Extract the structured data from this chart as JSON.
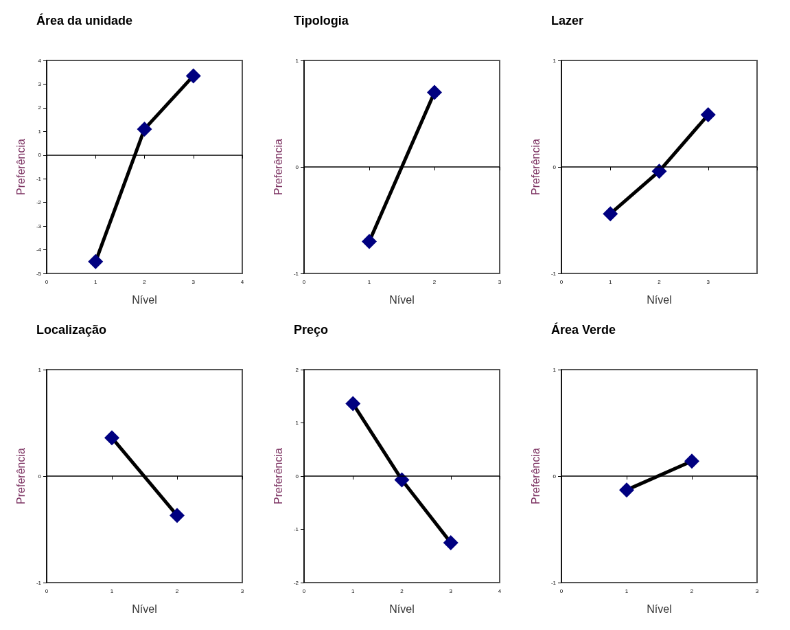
{
  "chart_data": [
    {
      "type": "line",
      "title": "Área da unidade",
      "xlabel": "Nível",
      "ylabel": "Preferência",
      "x": [
        1,
        2,
        3
      ],
      "series": [
        {
          "color": "#000080",
          "values": [
            -4.5,
            1.1,
            3.35
          ]
        }
      ],
      "xlim": [
        0,
        4
      ],
      "xticks": [
        0,
        1,
        2,
        3,
        4
      ],
      "ylim": [
        -5,
        4
      ],
      "yticks": [
        -5,
        -4,
        -3,
        -2,
        -1,
        0,
        1,
        2,
        3,
        4
      ],
      "marker": "diamond",
      "line_style": "solid",
      "ref_lines": [
        {
          "axis": "y",
          "value": 0,
          "color": "#000000"
        }
      ]
    },
    {
      "type": "line",
      "title": "Tipologia",
      "xlabel": "Nível",
      "ylabel": "Preferência",
      "x": [
        1,
        2
      ],
      "series": [
        {
          "color": "#000080",
          "values": [
            -0.7,
            0.7
          ]
        }
      ],
      "xlim": [
        0,
        3
      ],
      "xticks": [
        0,
        1,
        2,
        3
      ],
      "ylim": [
        -1,
        1
      ],
      "yticks": [
        -1,
        0,
        1
      ],
      "marker": "diamond",
      "line_style": "solid",
      "ref_lines": [
        {
          "axis": "y",
          "value": 0,
          "color": "#000000"
        }
      ]
    },
    {
      "type": "line",
      "title": "Lazer",
      "xlabel": "Nível",
      "ylabel": "Preferência",
      "x": [
        1,
        2,
        3
      ],
      "series": [
        {
          "color": "#000080",
          "values": [
            -0.44,
            -0.04,
            0.49
          ]
        }
      ],
      "xlim": [
        0,
        4
      ],
      "xticks": [
        0,
        1,
        2,
        3,
        {
          "value": 4,
          "label": null
        }
      ],
      "ylim": [
        -1,
        1
      ],
      "yticks": [
        -1,
        0,
        1
      ],
      "marker": "diamond",
      "line_style": "solid",
      "ref_lines": [
        {
          "axis": "y",
          "value": 0,
          "color": "#000000"
        }
      ]
    },
    {
      "type": "line",
      "title": "Localização",
      "xlabel": "Nível",
      "ylabel": "Preferência",
      "x": [
        1,
        2
      ],
      "series": [
        {
          "color": "#000080",
          "values": [
            0.36,
            -0.37
          ]
        }
      ],
      "xlim": [
        0,
        3
      ],
      "xticks": [
        0,
        1,
        2,
        3
      ],
      "ylim": [
        -1,
        1
      ],
      "yticks": [
        -1,
        0,
        1
      ],
      "marker": "diamond",
      "line_style": "solid",
      "ref_lines": [
        {
          "axis": "y",
          "value": 0,
          "color": "#000000"
        }
      ]
    },
    {
      "type": "line",
      "title": "Preço",
      "xlabel": "Nível",
      "ylabel": "Preferência",
      "x": [
        1,
        2,
        3
      ],
      "series": [
        {
          "color": "#000080",
          "values": [
            1.36,
            -0.07,
            -1.25
          ]
        }
      ],
      "xlim": [
        0,
        4
      ],
      "xticks": [
        0,
        1,
        2,
        3,
        4
      ],
      "ylim": [
        -2,
        2
      ],
      "yticks": [
        -2,
        -1,
        0,
        1,
        2
      ],
      "marker": "diamond",
      "line_style": "solid",
      "ref_lines": [
        {
          "axis": "y",
          "value": 0,
          "color": "#000000"
        }
      ]
    },
    {
      "type": "line",
      "title": "Área Verde",
      "xlabel": "Nível",
      "ylabel": "Preferência",
      "x": [
        1,
        2
      ],
      "series": [
        {
          "color": "#000080",
          "values": [
            -0.13,
            0.14
          ]
        }
      ],
      "xlim": [
        0,
        3
      ],
      "xticks": [
        0,
        1,
        2,
        3
      ],
      "ylim": [
        -1,
        1
      ],
      "yticks": [
        -1,
        0,
        1
      ],
      "marker": "diamond",
      "line_style": "solid",
      "ref_lines": [
        {
          "axis": "y",
          "value": 0,
          "color": "#000000"
        }
      ]
    }
  ]
}
